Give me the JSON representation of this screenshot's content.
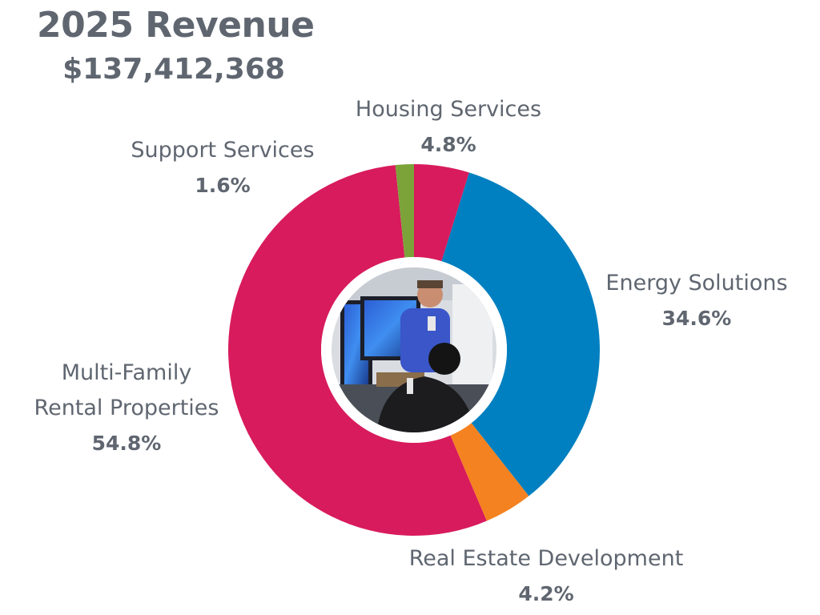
{
  "header": {
    "title": "2025 Revenue",
    "total": "$137,412,368"
  },
  "chart_data": {
    "type": "pie",
    "title": "2025 Revenue",
    "subtitle": "$137,412,368",
    "slices": [
      {
        "label": "Housing Services",
        "value": 4.8,
        "display": "4.8%",
        "color": "#d81b5c"
      },
      {
        "label": "Energy Solutions",
        "value": 34.6,
        "display": "34.6%",
        "color": "#0080c0"
      },
      {
        "label": "Real Estate Development",
        "value": 4.2,
        "display": "4.2%",
        "color": "#f58220"
      },
      {
        "label": "Multi-Family Rental Properties",
        "label_lines": [
          "Multi-Family",
          "Rental Properties"
        ],
        "value": 54.8,
        "display": "54.8%",
        "color": "#d81b5c"
      },
      {
        "label": "Support Services",
        "value": 1.6,
        "display": "1.6%",
        "color": "#7ba33a"
      }
    ]
  },
  "center_image": {
    "icon": "photo-icon"
  }
}
